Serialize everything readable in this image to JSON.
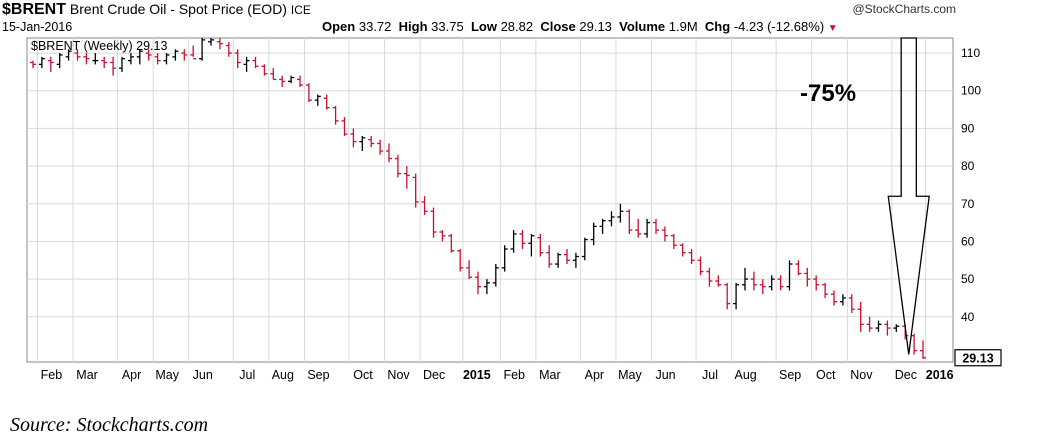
{
  "header": {
    "ticker": "$BRENT",
    "title": "Brent Crude Oil - Spot Price (EOD)",
    "exchange": "ICE",
    "source_brand": "@StockCharts.com",
    "date": "15-Jan-2016",
    "open_label": "Open",
    "open": "33.72",
    "high_label": "High",
    "high": "33.75",
    "low_label": "Low",
    "low": "28.82",
    "close_label": "Close",
    "close": "29.13",
    "volume_label": "Volume",
    "volume": "1.9M",
    "chg_label": "Chg",
    "chg": "-4.23 (-12.68%)"
  },
  "caption": "Source: Stockcharts.com",
  "colors": {
    "up": "#000000",
    "down": "#c8102e",
    "grid": "#d9d9d9"
  },
  "chart_data": {
    "type": "ohlc",
    "series_label": "$BRENT (Weekly) 29.13",
    "annotation": "-75%",
    "last_value_label": "29.13",
    "ylim": [
      28,
      114
    ],
    "y_ticks": [
      40,
      50,
      60,
      70,
      80,
      90,
      100,
      110
    ],
    "x_ticks": [
      {
        "w": 0.5,
        "label": "Feb"
      },
      {
        "w": 4.5,
        "label": "Mar"
      },
      {
        "w": 9.5,
        "label": "Apr"
      },
      {
        "w": 13.5,
        "label": "May"
      },
      {
        "w": 17.5,
        "label": "Jun"
      },
      {
        "w": 22.5,
        "label": "Jul"
      },
      {
        "w": 26.5,
        "label": "Aug"
      },
      {
        "w": 30.5,
        "label": "Sep"
      },
      {
        "w": 35.5,
        "label": "Oct"
      },
      {
        "w": 39.5,
        "label": "Nov"
      },
      {
        "w": 43.5,
        "label": "Dec"
      },
      {
        "w": 48.3,
        "label": "2015",
        "bold": true
      },
      {
        "w": 52.5,
        "label": "Feb"
      },
      {
        "w": 56.5,
        "label": "Mar"
      },
      {
        "w": 61.5,
        "label": "Apr"
      },
      {
        "w": 65.5,
        "label": "May"
      },
      {
        "w": 69.5,
        "label": "Jun"
      },
      {
        "w": 74.5,
        "label": "Jul"
      },
      {
        "w": 78.5,
        "label": "Aug"
      },
      {
        "w": 83.5,
        "label": "Sep"
      },
      {
        "w": 87.5,
        "label": "Oct"
      },
      {
        "w": 91.5,
        "label": "Nov"
      },
      {
        "w": 96.5,
        "label": "Dec"
      },
      {
        "w": 100.3,
        "label": "2016",
        "bold": true
      }
    ],
    "weeks": [
      [
        107.5,
        108,
        106,
        107
      ],
      [
        107,
        109,
        106,
        108.5
      ],
      [
        108,
        109,
        105,
        107.5
      ],
      [
        107,
        110,
        106,
        109.5
      ],
      [
        109,
        111,
        108,
        110.5
      ],
      [
        110,
        111,
        108,
        109
      ],
      [
        109,
        110,
        107,
        108.5
      ],
      [
        108,
        110,
        107,
        108
      ],
      [
        108,
        109,
        106,
        107.5
      ],
      [
        107.5,
        109,
        104,
        106
      ],
      [
        106,
        109,
        105,
        108.5
      ],
      [
        108,
        110,
        107,
        109
      ],
      [
        109,
        111,
        107,
        110.5
      ],
      [
        110,
        111,
        108,
        109.5
      ],
      [
        109,
        110,
        107,
        108
      ],
      [
        108,
        110,
        107,
        109.5
      ],
      [
        109,
        111,
        108,
        110.5
      ],
      [
        110,
        111,
        108,
        109.5
      ],
      [
        109.5,
        112,
        109,
        108.5
      ],
      [
        108.5,
        114,
        108,
        113.5
      ],
      [
        113,
        114,
        112,
        113.5
      ],
      [
        113,
        114,
        111,
        112.5
      ],
      [
        112,
        113,
        109,
        110
      ],
      [
        110,
        111,
        106,
        107.5
      ],
      [
        107,
        109,
        105,
        108
      ],
      [
        108,
        109,
        106,
        106.5
      ],
      [
        106.5,
        107,
        104,
        104.5
      ],
      [
        104.5,
        106,
        103,
        103
      ],
      [
        103,
        104,
        101,
        102.5
      ],
      [
        102.5,
        104,
        102,
        103.5
      ],
      [
        103,
        104,
        101,
        101.5
      ],
      [
        101.5,
        102,
        97,
        97.5
      ],
      [
        97.5,
        99,
        96,
        98.5
      ],
      [
        98,
        99,
        95,
        95.5
      ],
      [
        95.5,
        96,
        91,
        92
      ],
      [
        92,
        93,
        88,
        88.5
      ],
      [
        88.5,
        90,
        85,
        86.5
      ],
      [
        86.5,
        88,
        84,
        87.5
      ],
      [
        87,
        88,
        85,
        86
      ],
      [
        86,
        87,
        83,
        84
      ],
      [
        84,
        86,
        81,
        82
      ],
      [
        82,
        83,
        77,
        78
      ],
      [
        78,
        80,
        74,
        77.5
      ],
      [
        77,
        78,
        69,
        70.5
      ],
      [
        70.5,
        72,
        67,
        68
      ],
      [
        68,
        69,
        61,
        62.5
      ],
      [
        62.5,
        63,
        60,
        61.5
      ],
      [
        61.5,
        62,
        57,
        57.5
      ],
      [
        57.5,
        58,
        52,
        53
      ],
      [
        53,
        55,
        50,
        50.5
      ],
      [
        50.5,
        52,
        46,
        48
      ],
      [
        48,
        50,
        46,
        49
      ],
      [
        49,
        54,
        48,
        53
      ],
      [
        53,
        59,
        52,
        58
      ],
      [
        58,
        63,
        57,
        62
      ],
      [
        62,
        63,
        58,
        59.5
      ],
      [
        59.5,
        62,
        56,
        61.5
      ],
      [
        61,
        62,
        56,
        57
      ],
      [
        57,
        59,
        53,
        54
      ],
      [
        54,
        57,
        53,
        56.5
      ],
      [
        56.5,
        58,
        54,
        55
      ],
      [
        55,
        57,
        53,
        56
      ],
      [
        56,
        61,
        55,
        60.5
      ],
      [
        60.5,
        65,
        59,
        64
      ],
      [
        64,
        66,
        62,
        65.5
      ],
      [
        65.5,
        68,
        64,
        66.5
      ],
      [
        66.5,
        70,
        65,
        68
      ],
      [
        68,
        68.5,
        62,
        63
      ],
      [
        63,
        66,
        61,
        62
      ],
      [
        62,
        66,
        61,
        65
      ],
      [
        65,
        66,
        62,
        63
      ],
      [
        63,
        64,
        60,
        61.5
      ],
      [
        61.5,
        62,
        58,
        59
      ],
      [
        59,
        59.5,
        56,
        57
      ],
      [
        57,
        58,
        54,
        55
      ],
      [
        55,
        56,
        51,
        52
      ],
      [
        52,
        53,
        48,
        49.5
      ],
      [
        49.5,
        51,
        48,
        48.5
      ],
      [
        48.5,
        49,
        42,
        43.5
      ],
      [
        43.5,
        49,
        42,
        48.5
      ],
      [
        48.5,
        53,
        47,
        50
      ],
      [
        50,
        52,
        47,
        48.5
      ],
      [
        48.5,
        50,
        46,
        48
      ],
      [
        48,
        51,
        47,
        50
      ],
      [
        50,
        51,
        47,
        48
      ],
      [
        48,
        55,
        47,
        54
      ],
      [
        54,
        55,
        51,
        51.5
      ],
      [
        51.5,
        53,
        48,
        50
      ],
      [
        50,
        51,
        47,
        48.5
      ],
      [
        48.5,
        49,
        45,
        46
      ],
      [
        46,
        47,
        43,
        44
      ],
      [
        44,
        46,
        43,
        45
      ],
      [
        45,
        46,
        41,
        42
      ],
      [
        42,
        44,
        36,
        38
      ],
      [
        38,
        40,
        36,
        37
      ],
      [
        37,
        39,
        36,
        38
      ],
      [
        38,
        39,
        35,
        37
      ],
      [
        37,
        38,
        36,
        37.5
      ],
      [
        37.5,
        38,
        34,
        35
      ],
      [
        35,
        35.5,
        30,
        31
      ],
      [
        31,
        33.75,
        28.82,
        29.13
      ]
    ],
    "arrow": {
      "w_center": 97.5,
      "top": 114,
      "tip": 30,
      "shaft_halfwidth": 0.85,
      "head_halfwidth": 2.3,
      "head_top": 72
    }
  }
}
